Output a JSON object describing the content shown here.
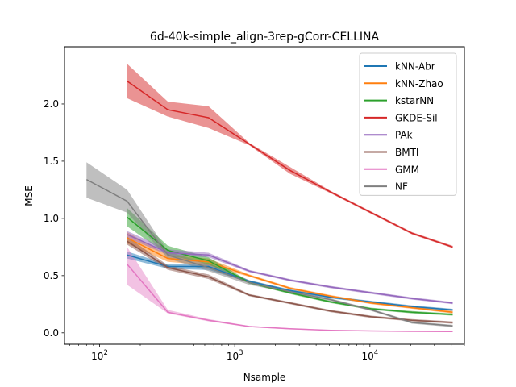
{
  "chart_data": {
    "type": "line",
    "title": "6d-40k-simple_align-3rep-gCorr-CELLINA",
    "xlabel": "Nsample",
    "ylabel": "MSE",
    "xscale": "log",
    "xlim": [
      55,
      50000
    ],
    "ylim": [
      -0.1,
      2.5
    ],
    "xticks": [
      {
        "value": 100,
        "base": "10",
        "exp": "2"
      },
      {
        "value": 1000,
        "base": "10",
        "exp": "3"
      },
      {
        "value": 10000,
        "base": "10",
        "exp": "4"
      }
    ],
    "yticks": [
      {
        "value": 0.0,
        "label": "0.0"
      },
      {
        "value": 0.5,
        "label": "0.5"
      },
      {
        "value": 1.0,
        "label": "1.0"
      },
      {
        "value": 1.5,
        "label": "1.5"
      },
      {
        "value": 2.0,
        "label": "2.0"
      }
    ],
    "legend_position": "top-right",
    "grid": false,
    "series": [
      {
        "name": "kNN-Abr",
        "color": "#1f77b4",
        "x": [
          160,
          320,
          640,
          1280,
          2560,
          5120,
          10240,
          20480,
          40960
        ],
        "y": [
          0.68,
          0.58,
          0.58,
          0.45,
          0.37,
          0.31,
          0.27,
          0.23,
          0.2
        ],
        "lower": [
          0.65,
          0.56,
          0.55,
          0.44,
          0.36,
          0.3,
          0.26,
          0.22,
          0.19
        ],
        "upper": [
          0.71,
          0.6,
          0.61,
          0.46,
          0.38,
          0.32,
          0.28,
          0.24,
          0.21
        ]
      },
      {
        "name": "kNN-Zhao",
        "color": "#ff7f0e",
        "x": [
          160,
          320,
          640,
          1280,
          2560,
          5120,
          10240,
          20480,
          40960
        ],
        "y": [
          0.83,
          0.65,
          0.62,
          0.5,
          0.39,
          0.32,
          0.26,
          0.22,
          0.18
        ],
        "lower": [
          0.78,
          0.62,
          0.59,
          0.49,
          0.38,
          0.31,
          0.25,
          0.21,
          0.17
        ],
        "upper": [
          0.88,
          0.68,
          0.65,
          0.51,
          0.4,
          0.33,
          0.27,
          0.23,
          0.19
        ]
      },
      {
        "name": "kstarNN",
        "color": "#2ca02c",
        "x": [
          160,
          320,
          640,
          1280,
          2560,
          5120,
          10240,
          20480,
          40960
        ],
        "y": [
          1.01,
          0.72,
          0.63,
          0.44,
          0.35,
          0.27,
          0.21,
          0.18,
          0.16
        ],
        "lower": [
          0.93,
          0.68,
          0.6,
          0.43,
          0.34,
          0.26,
          0.2,
          0.17,
          0.15
        ],
        "upper": [
          1.09,
          0.76,
          0.66,
          0.45,
          0.36,
          0.28,
          0.22,
          0.19,
          0.17
        ]
      },
      {
        "name": "GKDE-Sil",
        "color": "#d62728",
        "x": [
          160,
          320,
          640,
          1280,
          2560,
          5120,
          10240,
          20480,
          40960
        ],
        "y": [
          2.2,
          1.95,
          1.88,
          1.65,
          1.42,
          1.23,
          1.05,
          0.87,
          0.75
        ],
        "lower": [
          2.05,
          1.89,
          1.79,
          1.64,
          1.39,
          1.22,
          1.04,
          0.86,
          0.74
        ],
        "upper": [
          2.35,
          2.02,
          1.98,
          1.66,
          1.45,
          1.24,
          1.06,
          0.88,
          0.76
        ]
      },
      {
        "name": "PAk",
        "color": "#9467bd",
        "x": [
          160,
          320,
          640,
          1280,
          2560,
          5120,
          10240,
          20480,
          40960
        ],
        "y": [
          0.86,
          0.7,
          0.68,
          0.54,
          0.46,
          0.4,
          0.35,
          0.3,
          0.26
        ],
        "lower": [
          0.83,
          0.68,
          0.66,
          0.53,
          0.45,
          0.39,
          0.34,
          0.29,
          0.25
        ],
        "upper": [
          0.89,
          0.73,
          0.7,
          0.55,
          0.47,
          0.41,
          0.36,
          0.31,
          0.27
        ]
      },
      {
        "name": "BMTI",
        "color": "#8c564b",
        "x": [
          160,
          320,
          640,
          1280,
          2560,
          5120,
          10240,
          20480,
          40960
        ],
        "y": [
          0.8,
          0.57,
          0.49,
          0.33,
          0.26,
          0.19,
          0.14,
          0.11,
          0.09
        ],
        "lower": [
          0.77,
          0.55,
          0.47,
          0.32,
          0.25,
          0.18,
          0.13,
          0.1,
          0.08
        ],
        "upper": [
          0.84,
          0.59,
          0.51,
          0.34,
          0.27,
          0.2,
          0.15,
          0.12,
          0.1
        ]
      },
      {
        "name": "GMM",
        "color": "#e377c2",
        "x": [
          160,
          320,
          640,
          1280,
          2560,
          5120,
          10240,
          20480,
          40960
        ],
        "y": [
          0.6,
          0.18,
          0.11,
          0.055,
          0.035,
          0.022,
          0.016,
          0.013,
          0.011
        ],
        "lower": [
          0.42,
          0.17,
          0.1,
          0.05,
          0.03,
          0.02,
          0.014,
          0.011,
          0.01
        ],
        "upper": [
          0.75,
          0.2,
          0.12,
          0.06,
          0.04,
          0.024,
          0.018,
          0.015,
          0.012
        ],
        "fill_opacity": 0.45
      },
      {
        "name": "NF",
        "color": "#7f7f7f",
        "x": [
          80,
          160,
          320,
          640,
          1280,
          2560,
          5120,
          10240,
          20480,
          40960
        ],
        "y": [
          1.34,
          1.15,
          0.68,
          0.57,
          0.44,
          0.36,
          0.29,
          0.2,
          0.09,
          0.06
        ],
        "lower": [
          1.18,
          1.05,
          0.65,
          0.54,
          0.42,
          0.35,
          0.28,
          0.19,
          0.08,
          0.05
        ],
        "upper": [
          1.49,
          1.25,
          0.71,
          0.6,
          0.46,
          0.37,
          0.3,
          0.21,
          0.1,
          0.07
        ]
      }
    ]
  }
}
